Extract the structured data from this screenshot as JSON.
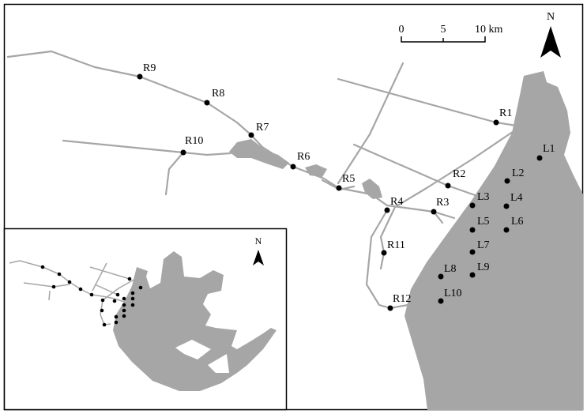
{
  "map": {
    "north_label": "N",
    "scale_bar": {
      "ticks": [
        "0",
        "5",
        "10 km"
      ]
    },
    "colors": {
      "water": "#a6a6a6",
      "roads": "#a6a6a6",
      "stations": "#000000",
      "frame": "#000000"
    },
    "river_stations": [
      "R1",
      "R2",
      "R3",
      "R4",
      "R5",
      "R6",
      "R7",
      "R8",
      "R9",
      "R10",
      "R11",
      "R12"
    ],
    "lake_stations": [
      "L1",
      "L2",
      "L3",
      "L4",
      "L5",
      "L6",
      "L7",
      "L8",
      "L9",
      "L10"
    ],
    "inset": {
      "north_label": "N"
    }
  }
}
